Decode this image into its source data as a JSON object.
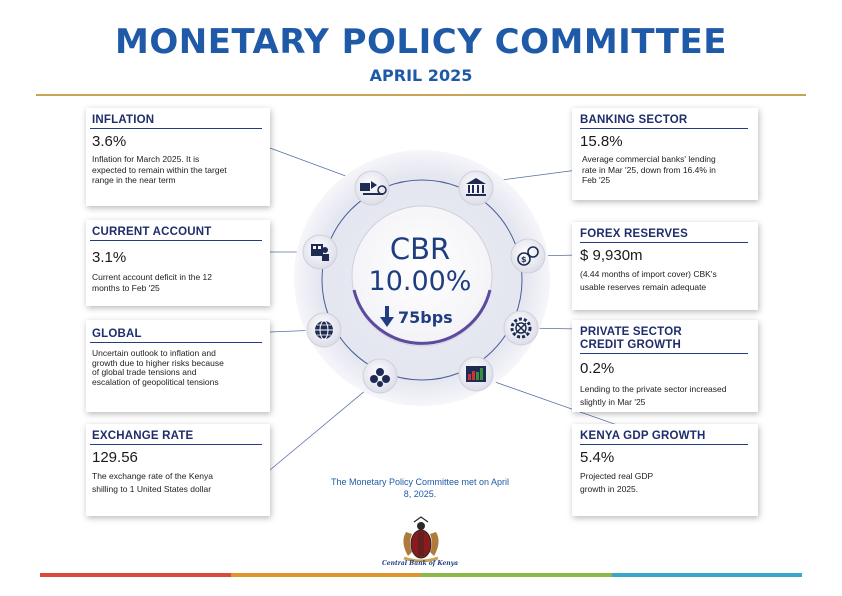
{
  "header": {
    "title": "MONETARY POLICY COMMITTEE",
    "subtitle": "APRIL 2025"
  },
  "left_cards": [
    {
      "heading": "INFLATION",
      "value": "3.6%",
      "description": "Inflation for March 2025. It is expected to remain within the target range in the near term"
    },
    {
      "heading": "CURRENT ACCOUNT",
      "value": "3.1%",
      "description": "Current account deficit in the 12 months to Feb '25"
    },
    {
      "heading": "GLOBAL",
      "value": "",
      "description": "Uncertain outlook to inflation and growth due to higher risks because of global trade tensions and escalation of geopolitical tensions"
    },
    {
      "heading": "EXCHANGE RATE",
      "value": "129.56",
      "description": "The exchange rate of the Kenya shilling to 1 United States dollar"
    }
  ],
  "right_cards": [
    {
      "heading": "BANKING SECTOR",
      "value": "15.8%",
      "description": "Average commercial banks' lending rate in Mar '25, down from 16.4% in Feb '25"
    },
    {
      "heading": "FOREX RESERVES",
      "value": "$ 9,930m",
      "description": "(4.44 months of import cover) CBK's usable reserves remain adequate"
    },
    {
      "heading": "PRIVATE SECTOR CREDIT GROWTH",
      "value": "0.2%",
      "description": "Lending to the private sector increased slightly in Mar '25"
    },
    {
      "heading": "KENYA GDP GROWTH",
      "value": "5.4%",
      "description": "Projected real GDP growth in 2025."
    }
  ],
  "hub": {
    "label": "CBR",
    "rate": "10.00%",
    "change": "75bps",
    "change_direction": "down"
  },
  "icons": [
    "trade-icon",
    "bank-icon",
    "currency-exchange-icon",
    "gear-icon",
    "growth-chart-icon",
    "coins-icon",
    "globe-icon",
    "office-worker-icon"
  ],
  "meeting_note": "The Monetary Policy Committee met on April 8, 2025.",
  "logo_text": "Central Bank of Kenya",
  "colors": {
    "title_blue": "#1f5aa8",
    "navy": "#1f3d80",
    "gold_rule": "#c9a35a",
    "bottom_bar": [
      "#d94a3d",
      "#e0962f",
      "#8cb84a",
      "#3aa7c9"
    ]
  }
}
